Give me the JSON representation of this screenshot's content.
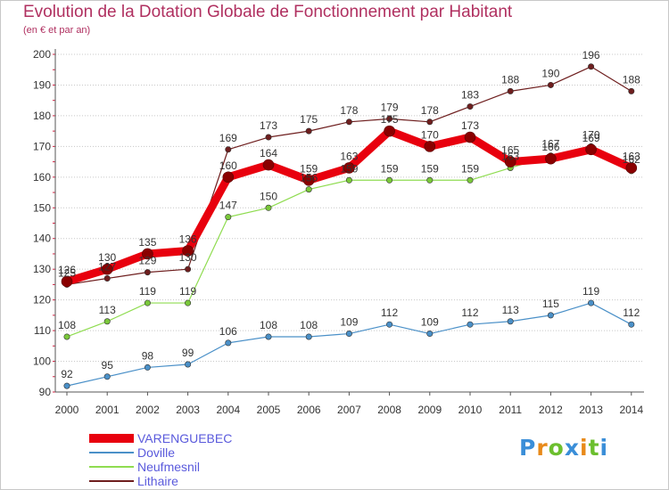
{
  "title": "Evolution de la Dotation Globale de Fonctionnement par Habitant",
  "subtitle": "(en € et par an)",
  "logo": {
    "text": "Proxiti",
    "colors": [
      "#3a8ed8",
      "#e88a1a",
      "#6cbf2e"
    ]
  },
  "chart_data": {
    "type": "line",
    "title": "Evolution de la Dotation Globale de Fonctionnement par Habitant",
    "subtitle": "(en € et par an)",
    "x": [
      "2000",
      "2001",
      "2002",
      "2003",
      "2004",
      "2005",
      "2006",
      "2007",
      "2008",
      "2009",
      "2010",
      "2011",
      "2012",
      "2013",
      "2014"
    ],
    "ylim": [
      90,
      200
    ],
    "yticks": [
      90,
      100,
      110,
      120,
      130,
      140,
      150,
      160,
      170,
      180,
      190,
      200
    ],
    "grid": "horizontal",
    "legend_position": "bottom-left",
    "series": [
      {
        "name": "VARENGUEBEC",
        "color": "#e8000e",
        "values": [
          126,
          130,
          135,
          136,
          160,
          164,
          159,
          163,
          175,
          170,
          173,
          165,
          166,
          169,
          163
        ]
      },
      {
        "name": "Doville",
        "color": "#4a90c8",
        "values": [
          92,
          95,
          98,
          99,
          106,
          108,
          108,
          109,
          112,
          109,
          112,
          113,
          115,
          119,
          112
        ]
      },
      {
        "name": "Neufmesnil",
        "color": "#8fdc50",
        "values": [
          108,
          113,
          119,
          119,
          147,
          150,
          156,
          159,
          159,
          159,
          159,
          163,
          167,
          170,
          162
        ]
      },
      {
        "name": "Lithaire",
        "color": "#6e1e1e",
        "values": [
          125,
          127,
          129,
          130,
          169,
          173,
          175,
          178,
          179,
          178,
          183,
          188,
          190,
          196,
          188
        ]
      }
    ]
  }
}
